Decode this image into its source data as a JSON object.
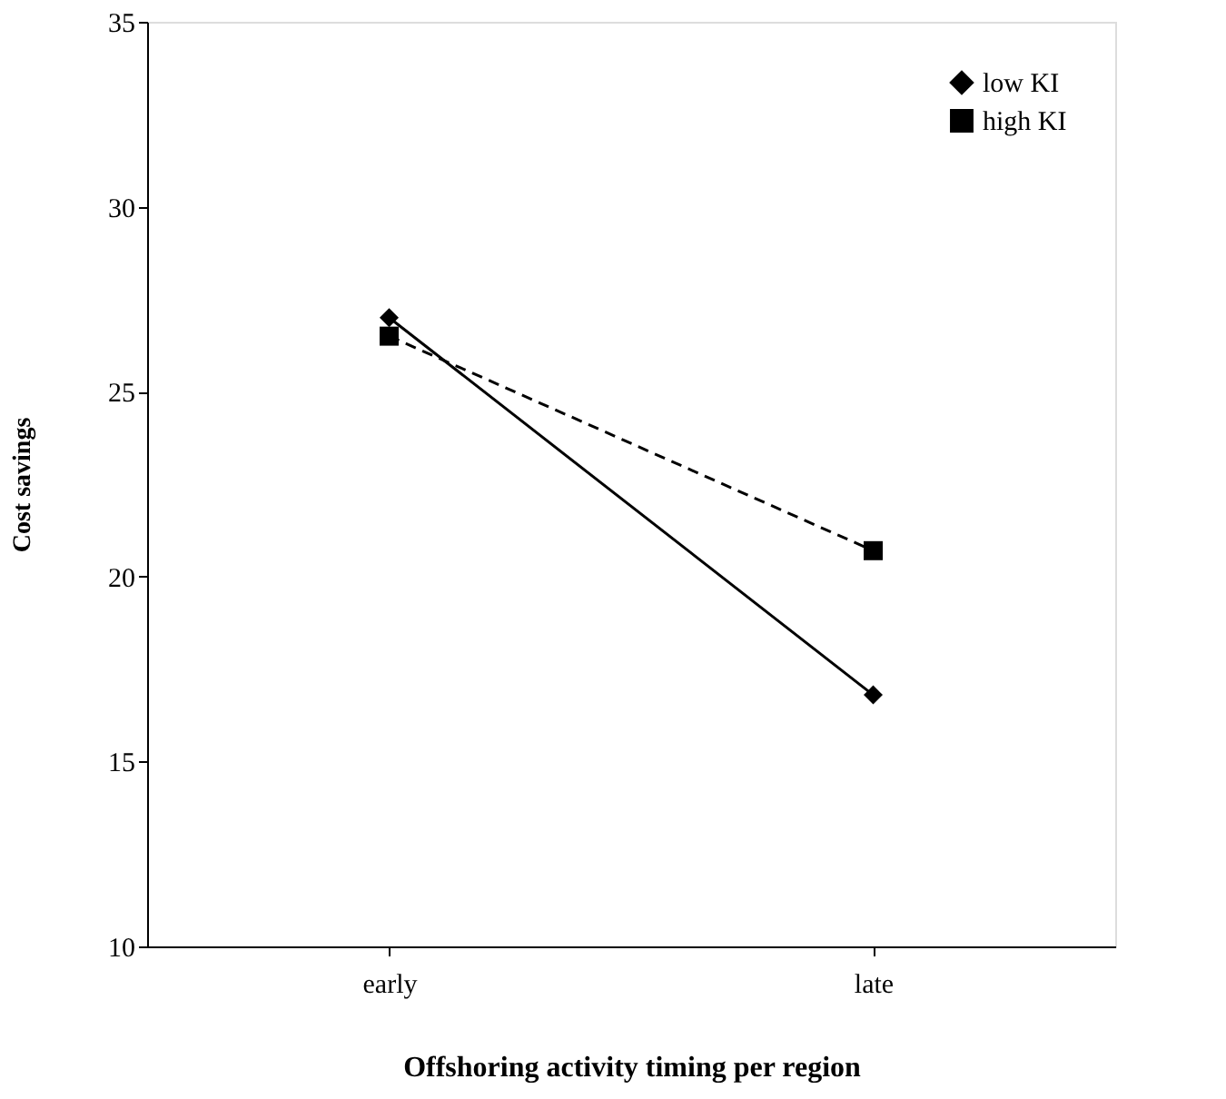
{
  "chart_data": {
    "type": "line",
    "xlabel": "Offshoring activity timing per region",
    "ylabel": "Cost savings",
    "categories": [
      "early",
      "late"
    ],
    "series": [
      {
        "name": "low KI",
        "color": "#000000",
        "values": [
          27.0,
          16.8
        ],
        "marker": "diamond",
        "line_style": "solid"
      },
      {
        "name": "high KI",
        "color": "#000000",
        "values": [
          26.5,
          20.7
        ],
        "marker": "square",
        "line_style": "dashed"
      }
    ],
    "ylim": [
      10,
      35
    ],
    "yticks": [
      10,
      15,
      20,
      25,
      30,
      35
    ],
    "grid": false,
    "legend": "top right"
  }
}
